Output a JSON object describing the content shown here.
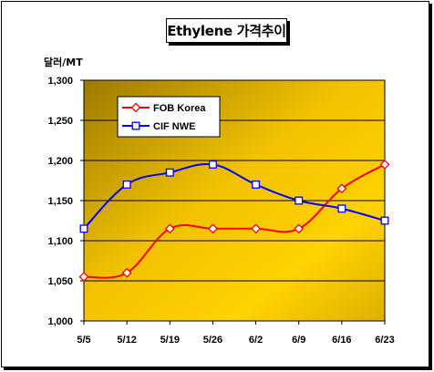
{
  "chart_data": {
    "type": "line",
    "title": "Ethylene 가격추이",
    "ylabel": "달러/MT",
    "categories": [
      "5/5",
      "5/12",
      "5/19",
      "5/26",
      "6/2",
      "6/9",
      "6/16",
      "6/23"
    ],
    "ylim": [
      1000,
      1300
    ],
    "yticks": [
      "1,000",
      "1,050",
      "1,100",
      "1,150",
      "1,200",
      "1,250",
      "1,300"
    ],
    "ytick_values": [
      1000,
      1050,
      1100,
      1150,
      1200,
      1250,
      1300
    ],
    "grid": "horizontal",
    "legend_position": "top-left",
    "series": [
      {
        "name": "FOB Korea",
        "color": "#ff0000",
        "marker": "diamond",
        "values": [
          1055,
          1060,
          1115,
          1115,
          1115,
          1115,
          1165,
          1195
        ]
      },
      {
        "name": "CIF NWE",
        "color": "#0000ff",
        "marker": "square",
        "values": [
          1115,
          1170,
          1185,
          1195,
          1170,
          1150,
          1140,
          1125
        ]
      }
    ]
  }
}
